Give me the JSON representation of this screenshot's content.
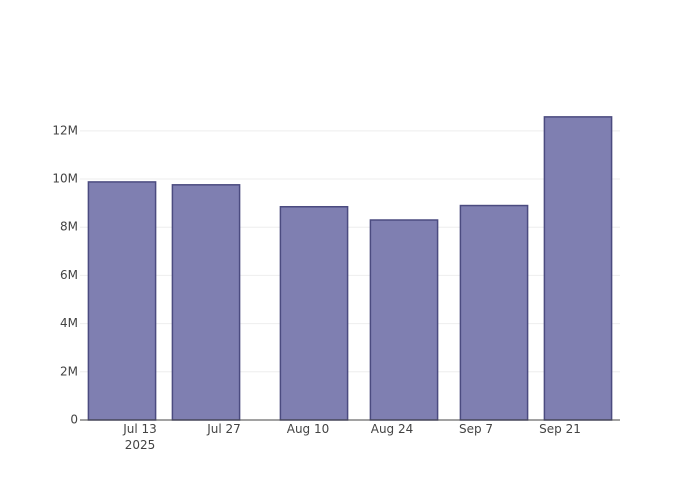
{
  "chart_data": {
    "type": "bar",
    "x": [
      "2025-07-10",
      "2025-07-24",
      "2025-08-11",
      "2025-08-26",
      "2025-09-10",
      "2025-09-24"
    ],
    "values": [
      9880000,
      9760000,
      8850000,
      8300000,
      8900000,
      12580000
    ],
    "color": "#7f7fb1",
    "edge_color": "#4b4b80",
    "xlim": [
      "2025-07-03",
      "2025-10-01"
    ],
    "xticks": [
      {
        "value": "2025-07-13",
        "label": "Jul 13\n2025"
      },
      {
        "value": "2025-07-27",
        "label": "Jul 27"
      },
      {
        "value": "2025-08-10",
        "label": "Aug 10"
      },
      {
        "value": "2025-08-24",
        "label": "Aug 24"
      },
      {
        "value": "2025-09-07",
        "label": "Sep 7"
      },
      {
        "value": "2025-09-21",
        "label": "Sep 21"
      }
    ],
    "ylim": [
      0,
      13280000
    ],
    "yticks": [
      0,
      {
        "value": 2000000,
        "label": "2M"
      },
      {
        "value": 4000000,
        "label": "4M"
      },
      {
        "value": 6000000,
        "label": "6M"
      },
      {
        "value": 8000000,
        "label": "8M"
      },
      {
        "value": 10000000,
        "label": "10M"
      },
      {
        "value": 12000000,
        "label": "12M"
      }
    ],
    "grid": true
  }
}
